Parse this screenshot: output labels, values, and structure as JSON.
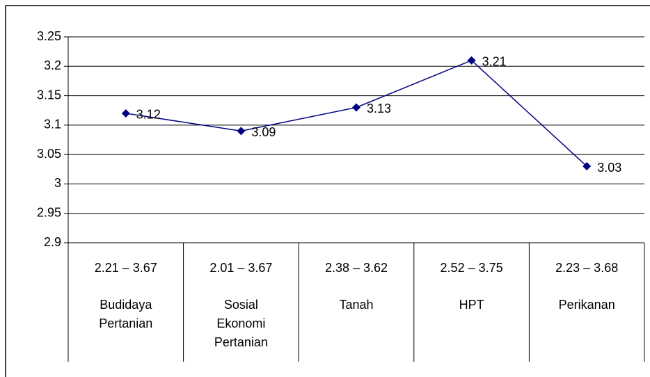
{
  "chart_data": {
    "type": "line",
    "categories": [
      "Budidaya Pertanian",
      "Sosial Ekonomi Pertanian",
      "Tanah",
      "HPT",
      "Perikanan"
    ],
    "category_ranges": [
      "2.21 – 3.67",
      "2.01 – 3.67",
      "2.38 – 3.62",
      "2.52 – 3.75",
      "2.23 – 3.68"
    ],
    "values": [
      3.12,
      3.09,
      3.13,
      3.21,
      3.03
    ],
    "color": "#000080",
    "ylim": [
      2.9,
      3.25
    ],
    "yticks": [
      2.9,
      2.95,
      3,
      3.05,
      3.1,
      3.15,
      3.2,
      3.25
    ],
    "grid": true
  }
}
